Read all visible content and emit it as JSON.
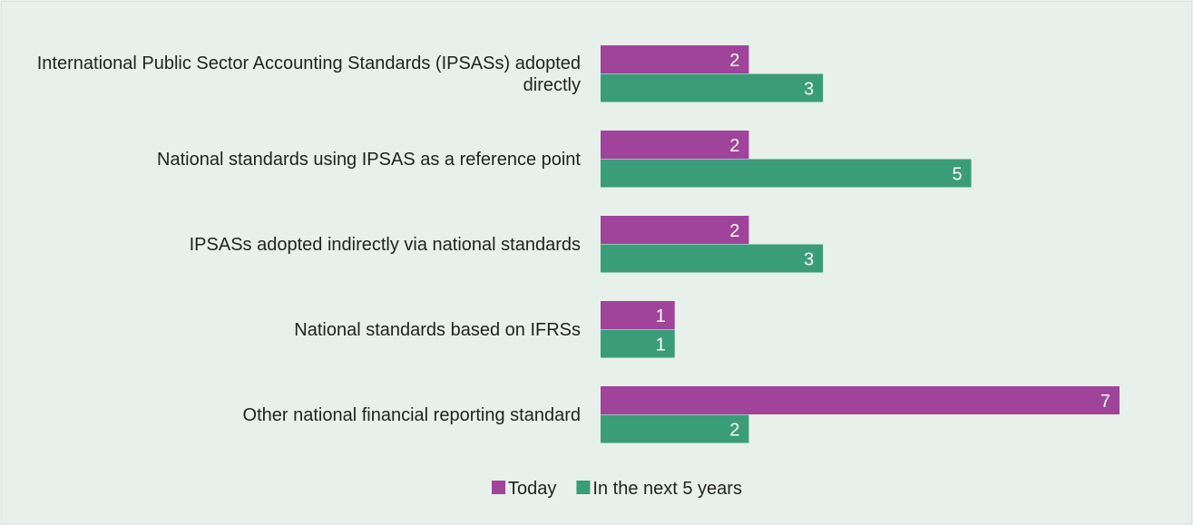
{
  "chart_data": {
    "type": "hbar",
    "categories": [
      "International Public Sector Accounting Standards (IPSASs) adopted directly",
      "National standards using IPSAS as a reference point",
      "IPSASs adopted indirectly via national standards",
      "National standards based on IFRSs",
      "Other national financial reporting standard"
    ],
    "series": [
      {
        "name": "Today",
        "color": "#a0439a",
        "values": [
          2,
          2,
          2,
          1,
          7
        ]
      },
      {
        "name": "In the next 5 years",
        "color": "#3a9c78",
        "values": [
          3,
          5,
          3,
          1,
          2
        ]
      }
    ],
    "xlim": [
      0,
      7
    ]
  }
}
